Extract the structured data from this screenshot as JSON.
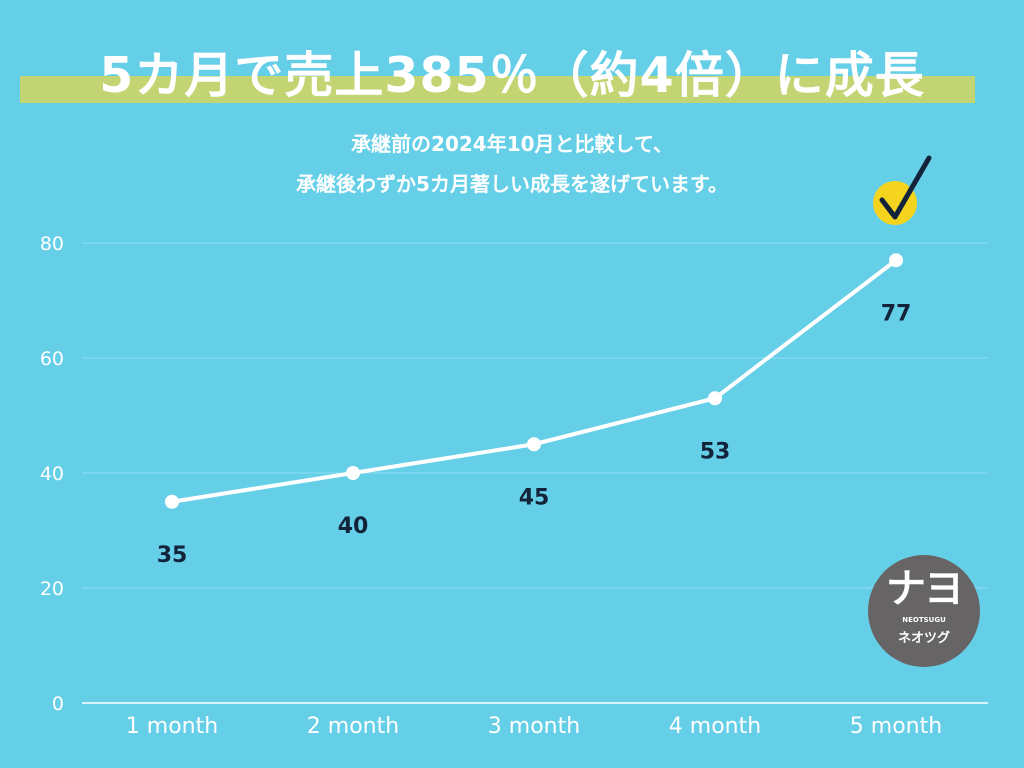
{
  "title": "5カ月で売上385％（約4倍）に成長",
  "subtitle": [
    "承継前の2024年10月と比較して、",
    "承継後わずか5カ月著しい成長を遂げています。"
  ],
  "logo": {
    "mark": "ナヨ",
    "roman": "NEOTSUGU",
    "kana": "ネオツグ"
  },
  "icons": {
    "check_badge": "check-badge-icon"
  },
  "colors": {
    "background": "#66cfe8",
    "title_band": "#c3d572",
    "line": "#ffffff",
    "gridline": "#8fdcef",
    "data_label": "#13233a",
    "check_circle": "#f4d41f",
    "logo_circle": "#666464"
  },
  "chart_data": {
    "type": "line",
    "categories": [
      "1 month",
      "2 month",
      "3 month",
      "4 month",
      "5 month"
    ],
    "series": [
      {
        "values": [
          35,
          40,
          45,
          53,
          77
        ]
      }
    ],
    "data_labels": [
      "35",
      "40",
      "45",
      "53",
      "77"
    ],
    "y_ticks": [
      0,
      20,
      40,
      60,
      80
    ],
    "ylim": [
      0,
      80
    ],
    "grid": true,
    "legend": "none"
  }
}
